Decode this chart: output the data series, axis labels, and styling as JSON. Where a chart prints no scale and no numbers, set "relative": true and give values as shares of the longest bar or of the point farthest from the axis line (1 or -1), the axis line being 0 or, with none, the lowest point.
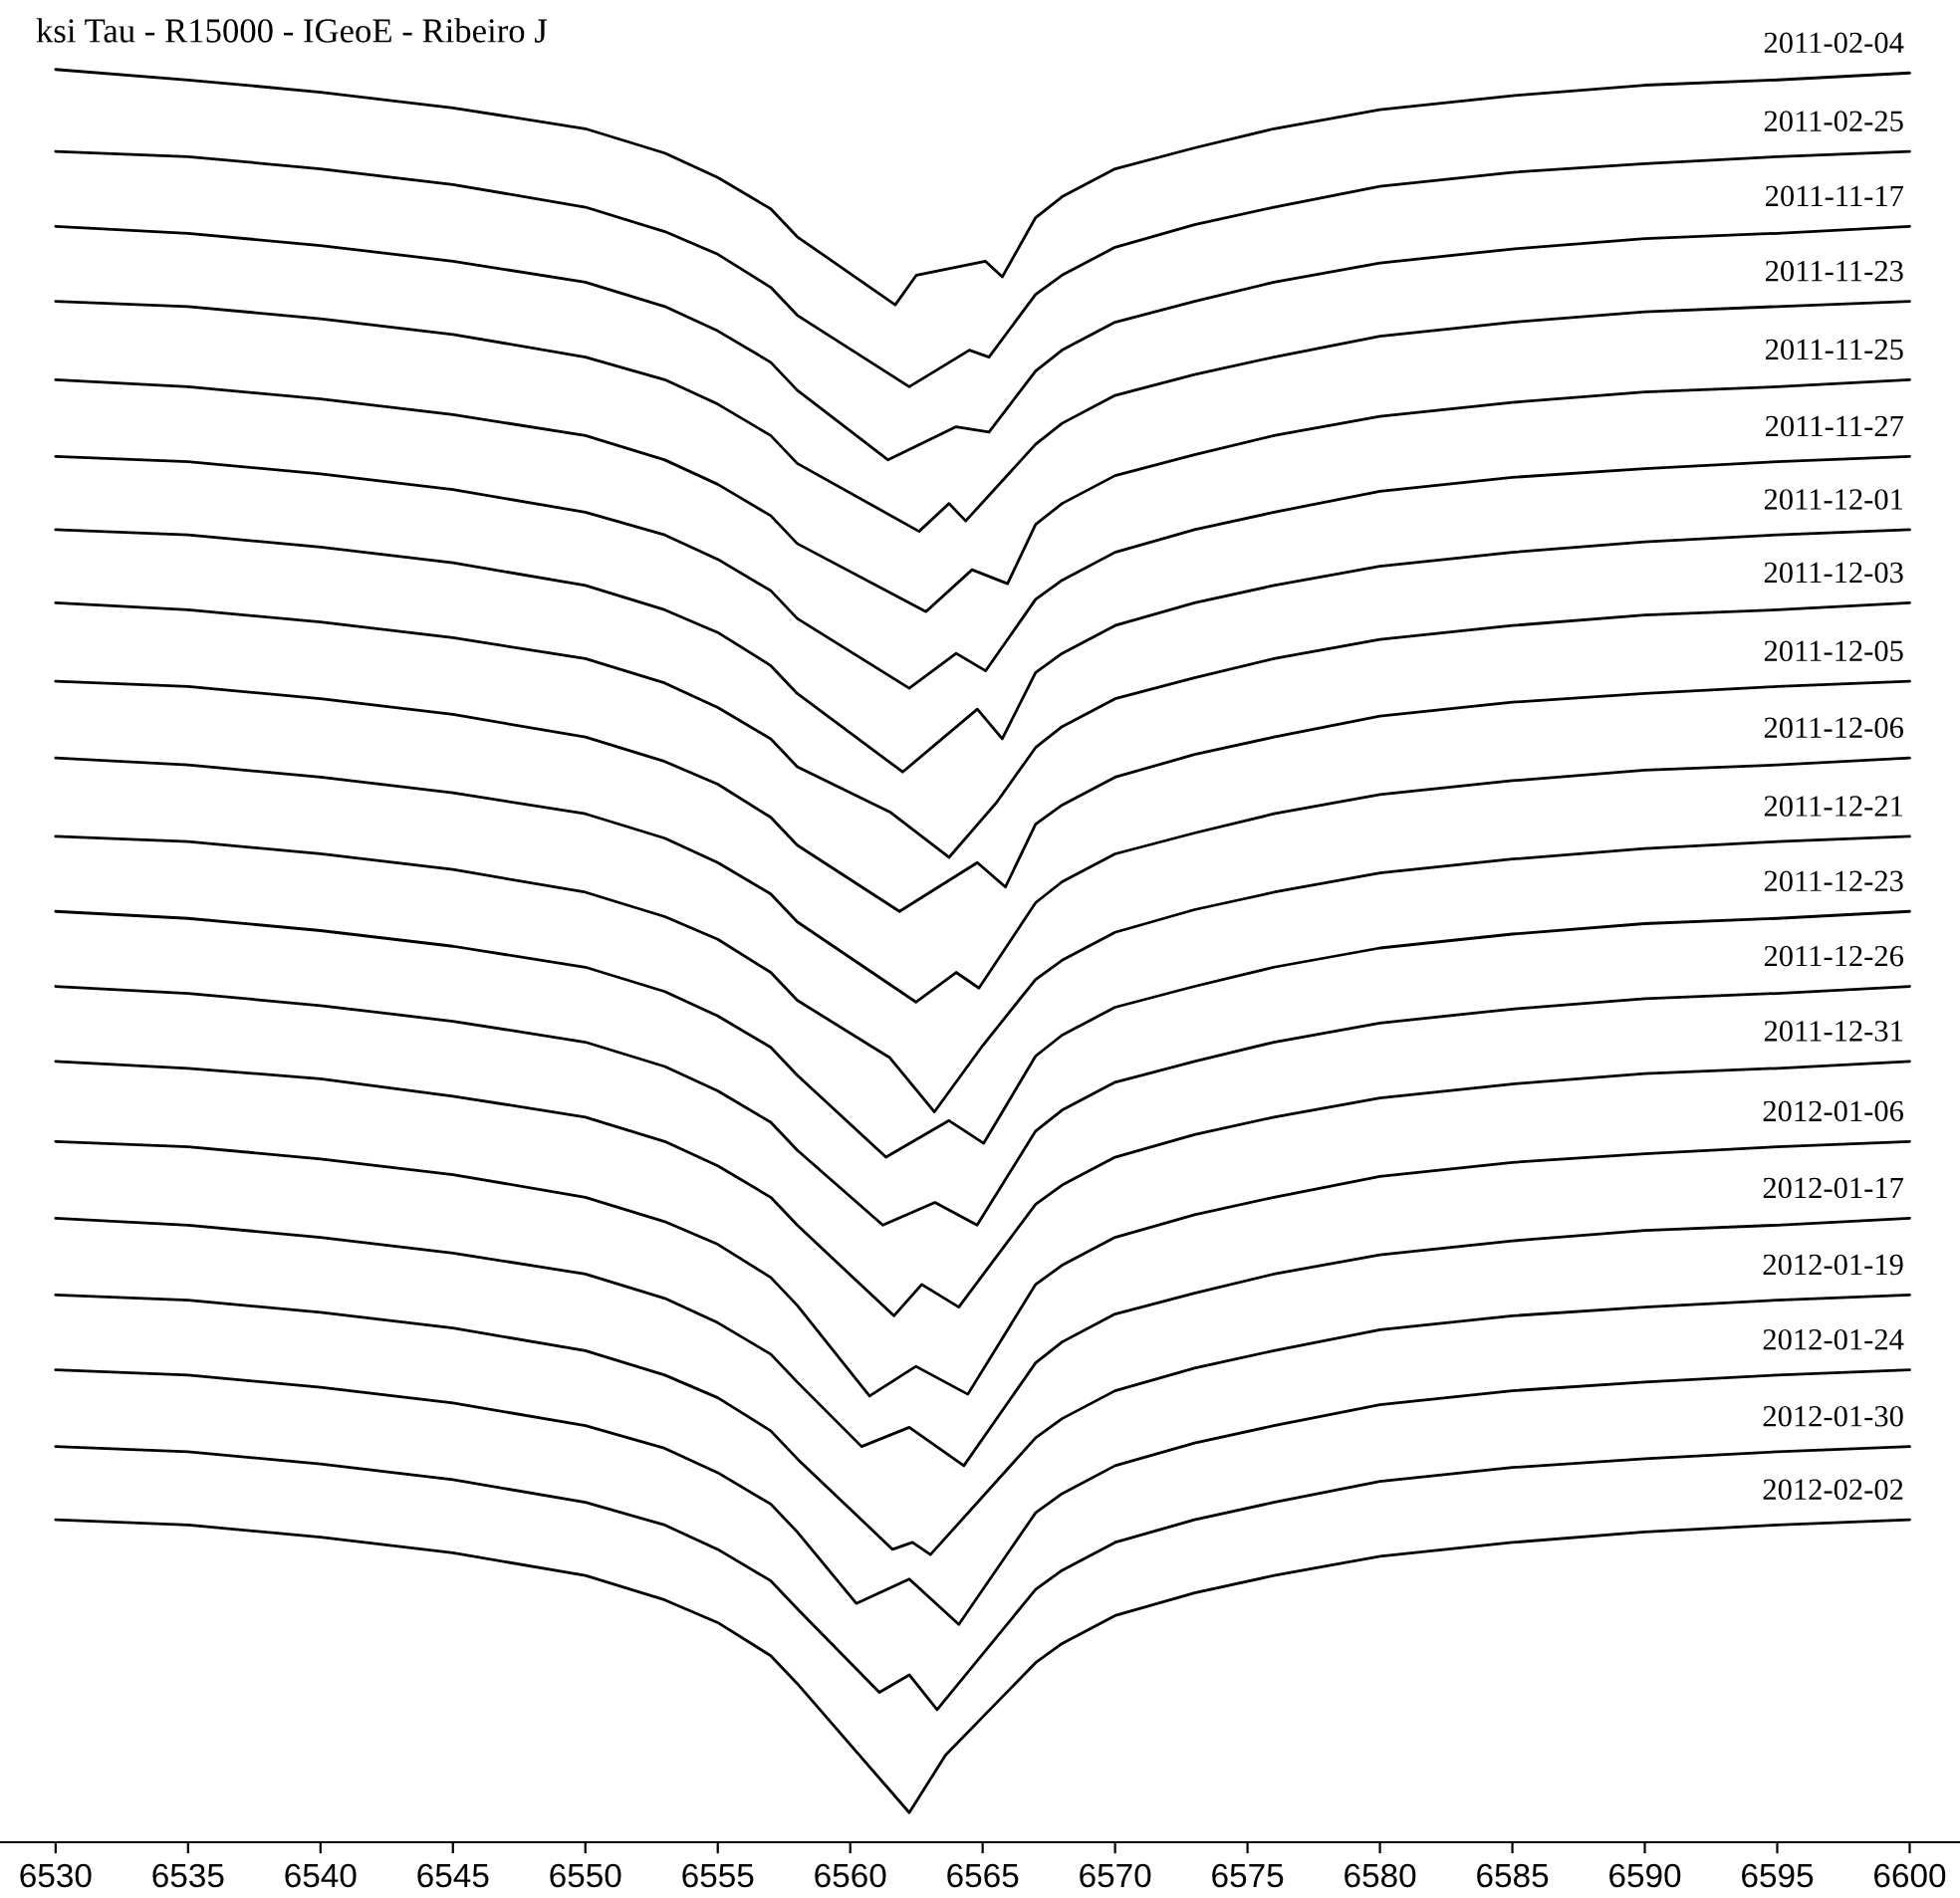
{
  "chart_data": {
    "type": "line",
    "title": "ksi Tau - R15000 - IGeoE - Ribeiro J",
    "relative": true,
    "grid": false,
    "xlim": [
      6527.9,
      6601.9
    ],
    "xticks": [
      6530,
      6535,
      6540,
      6545,
      6550,
      6555,
      6560,
      6565,
      6570,
      6575,
      6580,
      6585,
      6590,
      6595,
      6600
    ],
    "series": [
      {
        "name": "2011-02-04",
        "color": "#000000",
        "x": [
          6530,
          6535,
          6540,
          6545,
          6550,
          6553,
          6555,
          6557,
          6558,
          6561.7,
          6562.5,
          6565.1,
          6565.74,
          6567,
          6568,
          6570,
          6573,
          6576,
          6580,
          6585,
          6590,
          6595,
          6600
        ],
        "values": [
          1.0,
          0.994,
          0.987,
          0.978,
          0.966,
          0.952,
          0.938,
          0.92,
          0.904,
          0.865,
          0.882,
          0.89,
          0.881,
          0.915,
          0.927,
          0.943,
          0.955,
          0.966,
          0.977,
          0.985,
          0.991,
          0.994,
          0.998
        ]
      },
      {
        "name": "2011-02-25",
        "color": "#000000",
        "x": [
          6530,
          6535,
          6540,
          6545,
          6550,
          6553,
          6555,
          6557,
          6558,
          6562.23,
          6564.5,
          6565.24,
          6567,
          6568,
          6570,
          6573,
          6576,
          6580,
          6585,
          6590,
          6595,
          6600
        ],
        "values": [
          0.953,
          0.95,
          0.943,
          0.934,
          0.921,
          0.907,
          0.894,
          0.875,
          0.859,
          0.818,
          0.839,
          0.835,
          0.871,
          0.882,
          0.898,
          0.911,
          0.921,
          0.933,
          0.941,
          0.946,
          0.95,
          0.953
        ]
      },
      {
        "name": "2011-11-17",
        "color": "#000000",
        "x": [
          6530,
          6535,
          6540,
          6545,
          6550,
          6553,
          6555,
          6557,
          6558,
          6561.43,
          6564,
          6565.24,
          6567,
          6568,
          6570,
          6573,
          6576,
          6580,
          6585,
          6590,
          6595,
          6600
        ],
        "values": [
          0.91,
          0.906,
          0.899,
          0.89,
          0.878,
          0.864,
          0.85,
          0.832,
          0.816,
          0.776,
          0.795,
          0.792,
          0.827,
          0.839,
          0.855,
          0.867,
          0.878,
          0.889,
          0.897,
          0.903,
          0.906,
          0.91
        ]
      },
      {
        "name": "2011-11-23",
        "color": "#000000",
        "x": [
          6530,
          6535,
          6540,
          6545,
          6550,
          6553,
          6555,
          6557,
          6558,
          6562.6,
          6563.73,
          6564.36,
          6567,
          6568,
          6570,
          6573,
          6576,
          6580,
          6585,
          6590,
          6595,
          6600
        ],
        "values": [
          0.867,
          0.864,
          0.857,
          0.848,
          0.835,
          0.822,
          0.808,
          0.79,
          0.774,
          0.735,
          0.751,
          0.741,
          0.785,
          0.797,
          0.813,
          0.825,
          0.835,
          0.847,
          0.855,
          0.861,
          0.864,
          0.867
        ]
      },
      {
        "name": "2011-11-25",
        "color": "#000000",
        "x": [
          6530,
          6535,
          6540,
          6545,
          6550,
          6553,
          6555,
          6557,
          6558,
          6562.86,
          6564.6,
          6565.94,
          6567,
          6568,
          6570,
          6573,
          6576,
          6580,
          6585,
          6590,
          6595,
          6600
        ],
        "values": [
          0.822,
          0.818,
          0.811,
          0.802,
          0.79,
          0.776,
          0.762,
          0.744,
          0.728,
          0.689,
          0.713,
          0.705,
          0.739,
          0.751,
          0.767,
          0.779,
          0.79,
          0.801,
          0.809,
          0.815,
          0.818,
          0.822
        ]
      },
      {
        "name": "2011-11-27",
        "color": "#000000",
        "x": [
          6530,
          6535,
          6540,
          6545,
          6550,
          6553,
          6555,
          6557,
          6558,
          6562.23,
          6564,
          6565.11,
          6567,
          6568,
          6570,
          6573,
          6576,
          6580,
          6585,
          6590,
          6595,
          6600
        ],
        "values": [
          0.778,
          0.775,
          0.768,
          0.759,
          0.746,
          0.733,
          0.719,
          0.701,
          0.685,
          0.645,
          0.665,
          0.655,
          0.696,
          0.707,
          0.723,
          0.736,
          0.746,
          0.758,
          0.766,
          0.771,
          0.775,
          0.778
        ]
      },
      {
        "name": "2011-12-01",
        "color": "#000000",
        "x": [
          6530,
          6535,
          6540,
          6545,
          6550,
          6553,
          6555,
          6557,
          6558,
          6561.98,
          6564.8,
          6565.74,
          6567,
          6568,
          6570,
          6573,
          6576,
          6580,
          6585,
          6590,
          6595,
          6600
        ],
        "values": [
          0.736,
          0.733,
          0.726,
          0.717,
          0.704,
          0.69,
          0.677,
          0.658,
          0.642,
          0.597,
          0.633,
          0.616,
          0.654,
          0.665,
          0.681,
          0.694,
          0.704,
          0.715,
          0.723,
          0.729,
          0.733,
          0.736
        ]
      },
      {
        "name": "2011-12-03",
        "color": "#000000",
        "x": [
          6530,
          6535,
          6540,
          6545,
          6550,
          6553,
          6555,
          6557,
          6558,
          6561.5,
          6563.73,
          6565.5,
          6567,
          6568,
          6570,
          6573,
          6576,
          6580,
          6585,
          6590,
          6595,
          6600
        ],
        "values": [
          0.694,
          0.69,
          0.683,
          0.674,
          0.662,
          0.648,
          0.634,
          0.616,
          0.6,
          0.574,
          0.548,
          0.579,
          0.611,
          0.623,
          0.639,
          0.651,
          0.662,
          0.673,
          0.681,
          0.687,
          0.69,
          0.694
        ]
      },
      {
        "name": "2011-12-05",
        "color": "#000000",
        "x": [
          6530,
          6535,
          6540,
          6545,
          6550,
          6553,
          6555,
          6557,
          6558,
          6561.86,
          6564.8,
          6565.86,
          6567,
          6568,
          6570,
          6573,
          6576,
          6580,
          6585,
          6590,
          6595,
          6600
        ],
        "values": [
          0.649,
          0.646,
          0.639,
          0.63,
          0.617,
          0.603,
          0.59,
          0.571,
          0.555,
          0.517,
          0.545,
          0.531,
          0.567,
          0.578,
          0.594,
          0.607,
          0.617,
          0.629,
          0.637,
          0.642,
          0.646,
          0.649
        ]
      },
      {
        "name": "2011-12-06",
        "color": "#000000",
        "x": [
          6530,
          6535,
          6540,
          6545,
          6550,
          6553,
          6555,
          6557,
          6558,
          6562.48,
          6564,
          6564.86,
          6567,
          6568,
          6570,
          6573,
          6576,
          6580,
          6585,
          6590,
          6595,
          6600
        ],
        "values": [
          0.605,
          0.601,
          0.594,
          0.585,
          0.573,
          0.559,
          0.545,
          0.527,
          0.511,
          0.465,
          0.482,
          0.473,
          0.522,
          0.534,
          0.55,
          0.562,
          0.573,
          0.584,
          0.592,
          0.598,
          0.601,
          0.605
        ]
      },
      {
        "name": "2011-12-21",
        "color": "#000000",
        "x": [
          6530,
          6535,
          6540,
          6545,
          6550,
          6553,
          6555,
          6557,
          6558,
          6561.5,
          6563.18,
          6565,
          6567,
          6568,
          6570,
          6573,
          6576,
          6580,
          6585,
          6590,
          6595,
          6600
        ],
        "values": [
          0.56,
          0.557,
          0.55,
          0.541,
          0.528,
          0.514,
          0.501,
          0.482,
          0.466,
          0.433,
          0.402,
          0.44,
          0.478,
          0.489,
          0.505,
          0.518,
          0.528,
          0.539,
          0.547,
          0.553,
          0.557,
          0.56
        ]
      },
      {
        "name": "2011-12-23",
        "color": "#000000",
        "x": [
          6530,
          6535,
          6540,
          6545,
          6550,
          6553,
          6555,
          6557,
          6558,
          6561.35,
          6563.73,
          6565.04,
          6567,
          6568,
          6570,
          6573,
          6576,
          6580,
          6585,
          6590,
          6595,
          6600
        ],
        "values": [
          0.517,
          0.513,
          0.506,
          0.497,
          0.485,
          0.471,
          0.457,
          0.439,
          0.423,
          0.376,
          0.397,
          0.384,
          0.434,
          0.446,
          0.462,
          0.474,
          0.485,
          0.496,
          0.504,
          0.51,
          0.513,
          0.517
        ]
      },
      {
        "name": "2011-12-26",
        "color": "#000000",
        "x": [
          6530,
          6535,
          6540,
          6545,
          6550,
          6553,
          6555,
          6557,
          6558,
          6561.23,
          6563.2,
          6564.79,
          6567,
          6568,
          6570,
          6573,
          6576,
          6580,
          6585,
          6590,
          6595,
          6600
        ],
        "values": [
          0.474,
          0.47,
          0.463,
          0.454,
          0.442,
          0.428,
          0.414,
          0.396,
          0.38,
          0.337,
          0.35,
          0.337,
          0.391,
          0.403,
          0.419,
          0.431,
          0.442,
          0.453,
          0.461,
          0.467,
          0.47,
          0.474
        ]
      },
      {
        "name": "2011-12-31",
        "color": "#000000",
        "x": [
          6530,
          6535,
          6540,
          6545,
          6550,
          6553,
          6555,
          6557,
          6558,
          6561.65,
          6562.7,
          6564.1,
          6567,
          6568,
          6570,
          6573,
          6576,
          6580,
          6585,
          6590,
          6595,
          6600
        ],
        "values": [
          0.431,
          0.427,
          0.421,
          0.411,
          0.399,
          0.385,
          0.371,
          0.353,
          0.337,
          0.285,
          0.303,
          0.29,
          0.349,
          0.36,
          0.376,
          0.389,
          0.399,
          0.41,
          0.418,
          0.424,
          0.427,
          0.431
        ]
      },
      {
        "name": "2012-01-06",
        "color": "#000000",
        "x": [
          6530,
          6535,
          6540,
          6545,
          6550,
          6553,
          6555,
          6557,
          6558,
          6560.73,
          6562.48,
          6564.44,
          6567,
          6568,
          6570,
          6573,
          6576,
          6580,
          6585,
          6590,
          6595,
          6600
        ],
        "values": [
          0.385,
          0.382,
          0.375,
          0.366,
          0.353,
          0.339,
          0.326,
          0.307,
          0.291,
          0.239,
          0.256,
          0.24,
          0.303,
          0.314,
          0.33,
          0.343,
          0.353,
          0.365,
          0.373,
          0.378,
          0.382,
          0.385
        ]
      },
      {
        "name": "2012-01-17",
        "color": "#000000",
        "x": [
          6530,
          6535,
          6540,
          6545,
          6550,
          6553,
          6555,
          6557,
          6558,
          6560.43,
          6562.23,
          6564.29,
          6567,
          6568,
          6570,
          6573,
          6576,
          6580,
          6585,
          6590,
          6595,
          6600
        ],
        "values": [
          0.341,
          0.337,
          0.33,
          0.321,
          0.309,
          0.295,
          0.281,
          0.263,
          0.247,
          0.21,
          0.221,
          0.199,
          0.258,
          0.27,
          0.286,
          0.298,
          0.309,
          0.32,
          0.328,
          0.334,
          0.337,
          0.341
        ]
      },
      {
        "name": "2012-01-19",
        "color": "#000000",
        "x": [
          6530,
          6535,
          6540,
          6545,
          6550,
          6553,
          6555,
          6557,
          6558,
          6561.6,
          6562.35,
          6563.03,
          6567,
          6568,
          6570,
          6573,
          6576,
          6580,
          6585,
          6590,
          6595,
          6600
        ],
        "values": [
          0.297,
          0.294,
          0.287,
          0.278,
          0.265,
          0.251,
          0.238,
          0.219,
          0.203,
          0.151,
          0.155,
          0.148,
          0.215,
          0.226,
          0.242,
          0.255,
          0.265,
          0.277,
          0.285,
          0.29,
          0.294,
          0.297
        ]
      },
      {
        "name": "2012-01-24",
        "color": "#000000",
        "x": [
          6530,
          6535,
          6540,
          6545,
          6550,
          6553,
          6555,
          6557,
          6558,
          6560.23,
          6562.23,
          6564.1,
          6567,
          6568,
          6570,
          6573,
          6576,
          6580,
          6585,
          6590,
          6595,
          6600
        ],
        "values": [
          0.254,
          0.251,
          0.244,
          0.235,
          0.222,
          0.209,
          0.195,
          0.177,
          0.161,
          0.12,
          0.134,
          0.108,
          0.172,
          0.183,
          0.199,
          0.212,
          0.222,
          0.234,
          0.242,
          0.247,
          0.251,
          0.254
        ]
      },
      {
        "name": "2012-01-30",
        "color": "#000000",
        "x": [
          6530,
          6535,
          6540,
          6545,
          6550,
          6553,
          6555,
          6557,
          6558,
          6561.1,
          6562.23,
          6563.28,
          6567,
          6568,
          6570,
          6573,
          6576,
          6580,
          6585,
          6590,
          6595,
          6600
        ],
        "values": [
          0.21,
          0.207,
          0.2,
          0.191,
          0.178,
          0.165,
          0.151,
          0.133,
          0.117,
          0.069,
          0.079,
          0.059,
          0.128,
          0.139,
          0.155,
          0.168,
          0.178,
          0.19,
          0.198,
          0.203,
          0.207,
          0.21
        ]
      },
      {
        "name": "2012-02-02",
        "color": "#000000",
        "x": [
          6530,
          6535,
          6540,
          6545,
          6550,
          6553,
          6555,
          6557,
          6558,
          6562.23,
          6563.6,
          6567,
          6568,
          6570,
          6573,
          6576,
          6580,
          6585,
          6590,
          6595,
          6600
        ],
        "values": [
          0.168,
          0.165,
          0.158,
          0.149,
          0.136,
          0.122,
          0.109,
          0.09,
          0.074,
          0.0,
          0.033,
          0.086,
          0.097,
          0.113,
          0.126,
          0.136,
          0.147,
          0.155,
          0.161,
          0.165,
          0.168
        ]
      }
    ]
  }
}
